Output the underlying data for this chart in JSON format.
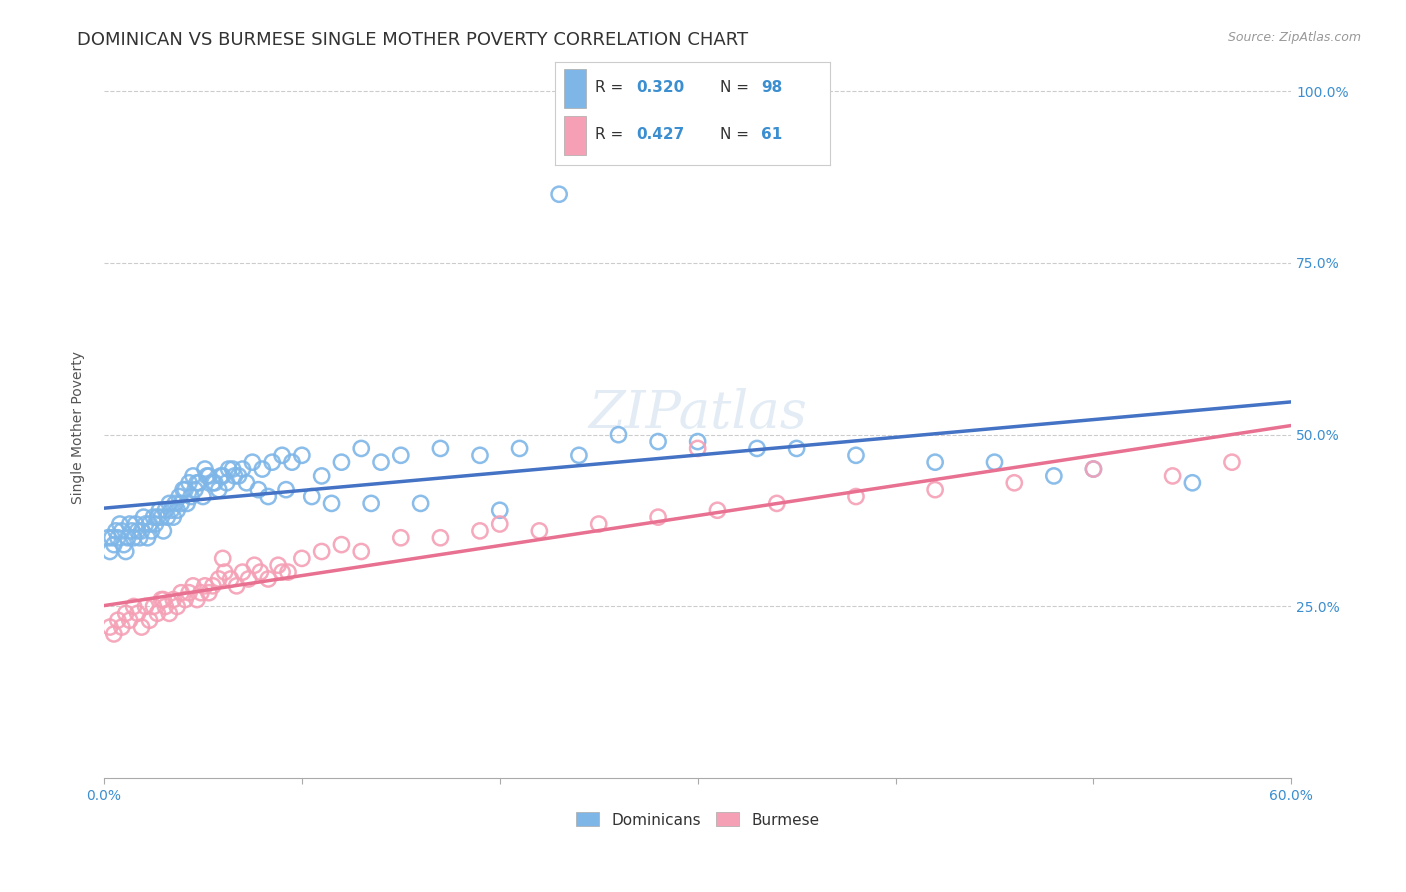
{
  "title": "DOMINICAN VS BURMESE SINGLE MOTHER POVERTY CORRELATION CHART",
  "source": "Source: ZipAtlas.com",
  "ylabel": "Single Mother Poverty",
  "legend_label1": "Dominicans",
  "legend_label2": "Burmese",
  "color_dominican": "#7EB6E8",
  "color_burmese": "#F5A0B5",
  "color_text_blue": "#3B8ED0",
  "color_line_dominican": "#4472C4",
  "color_line_burmese": "#E87090",
  "background_color": "#FFFFFF",
  "grid_color": "#CCCCCC",
  "watermark_text": "ZIPatlas",
  "dominican_x": [
    0.2,
    0.3,
    0.4,
    0.5,
    0.6,
    0.7,
    0.8,
    0.9,
    1.0,
    1.1,
    1.2,
    1.3,
    1.4,
    1.5,
    1.6,
    1.7,
    1.8,
    1.9,
    2.0,
    2.1,
    2.2,
    2.3,
    2.4,
    2.5,
    2.6,
    2.7,
    2.8,
    2.9,
    3.0,
    3.1,
    3.2,
    3.3,
    3.4,
    3.5,
    3.6,
    3.7,
    3.8,
    3.9,
    4.0,
    4.2,
    4.4,
    4.6,
    4.8,
    5.0,
    5.2,
    5.5,
    5.8,
    6.0,
    6.3,
    6.5,
    6.8,
    7.0,
    7.5,
    8.0,
    8.5,
    9.0,
    9.5,
    10.0,
    11.0,
    12.0,
    13.0,
    14.0,
    15.0,
    17.0,
    19.0,
    21.0,
    24.0,
    28.0,
    33.0,
    38.0,
    42.0,
    48.0,
    26.0,
    30.0,
    35.0,
    45.0,
    50.0,
    55.0,
    4.1,
    4.3,
    4.5,
    4.7,
    5.1,
    5.3,
    5.6,
    5.9,
    6.2,
    6.6,
    7.2,
    7.8,
    8.3,
    9.2,
    10.5,
    11.5,
    13.5,
    16.0,
    20.0,
    23.0
  ],
  "dominican_y": [
    35,
    33,
    35,
    34,
    36,
    35,
    37,
    36,
    34,
    33,
    35,
    37,
    36,
    35,
    37,
    36,
    35,
    36,
    38,
    37,
    35,
    37,
    36,
    38,
    37,
    38,
    39,
    38,
    36,
    39,
    38,
    40,
    39,
    38,
    40,
    39,
    41,
    40,
    42,
    40,
    41,
    42,
    43,
    41,
    44,
    43,
    42,
    44,
    45,
    45,
    44,
    45,
    46,
    45,
    46,
    47,
    46,
    47,
    44,
    46,
    48,
    46,
    47,
    48,
    47,
    48,
    47,
    49,
    48,
    47,
    46,
    44,
    50,
    49,
    48,
    46,
    45,
    43,
    42,
    43,
    44,
    43,
    45,
    44,
    43,
    44,
    43,
    44,
    43,
    42,
    41,
    42,
    41,
    40,
    40,
    40,
    39,
    85
  ],
  "burmese_x": [
    0.3,
    0.5,
    0.7,
    0.9,
    1.1,
    1.3,
    1.5,
    1.7,
    1.9,
    2.1,
    2.3,
    2.5,
    2.7,
    2.9,
    3.1,
    3.3,
    3.5,
    3.7,
    3.9,
    4.1,
    4.3,
    4.5,
    4.7,
    4.9,
    5.1,
    5.3,
    5.5,
    5.8,
    6.1,
    6.4,
    6.7,
    7.0,
    7.3,
    7.6,
    7.9,
    8.3,
    8.8,
    9.3,
    10.0,
    11.0,
    12.0,
    13.0,
    15.0,
    17.0,
    19.0,
    22.0,
    25.0,
    28.0,
    31.0,
    34.0,
    38.0,
    42.0,
    46.0,
    50.0,
    54.0,
    57.0,
    3.0,
    6.0,
    9.0,
    20.0,
    30.0
  ],
  "burmese_y": [
    22,
    21,
    23,
    22,
    24,
    23,
    25,
    24,
    22,
    25,
    23,
    25,
    24,
    26,
    25,
    24,
    26,
    25,
    27,
    26,
    27,
    28,
    26,
    27,
    28,
    27,
    28,
    29,
    30,
    29,
    28,
    30,
    29,
    31,
    30,
    29,
    31,
    30,
    32,
    33,
    34,
    33,
    35,
    35,
    36,
    36,
    37,
    38,
    39,
    40,
    41,
    42,
    43,
    45,
    44,
    46,
    26,
    32,
    30,
    37,
    48
  ],
  "xlim": [
    0,
    60
  ],
  "ylim": [
    0,
    102
  ],
  "title_fontsize": 13,
  "axis_label_fontsize": 10,
  "source_fontsize": 9,
  "legend_fontsize": 11
}
